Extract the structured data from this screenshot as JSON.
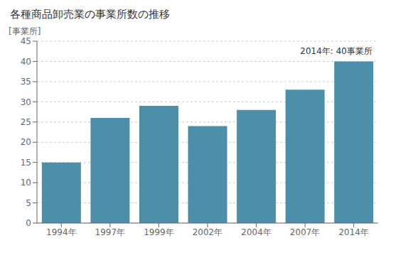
{
  "chart_data": {
    "type": "bar",
    "title": "各種商品卸売業の事業所数の推移",
    "ylabel": "[事業所]",
    "annotation": "2014年: 40事業所",
    "categories": [
      "1994年",
      "1997年",
      "1999年",
      "2002年",
      "2004年",
      "2007年",
      "2014年"
    ],
    "values": [
      15,
      26,
      29,
      24,
      28,
      33,
      40
    ],
    "color": "#4d8fa8",
    "ylim": [
      0,
      45
    ],
    "yticks": [
      0,
      5,
      10,
      15,
      20,
      25,
      30,
      35,
      40,
      45
    ],
    "grid": true
  }
}
